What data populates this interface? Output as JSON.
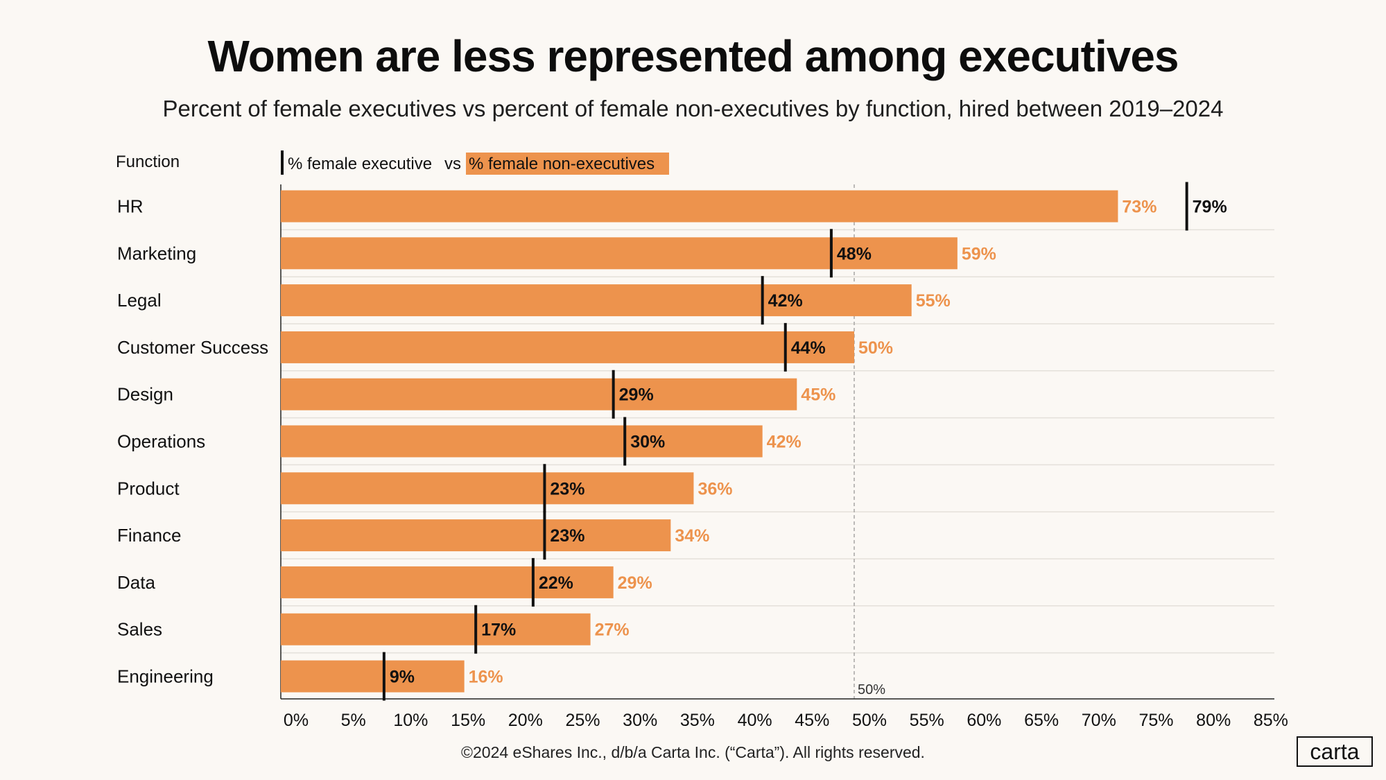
{
  "title": "Women are less represented among executives",
  "subtitle": "Percent of female executives vs percent of female non-executives by function, hired between 2019–2024",
  "footer": "©2024 eShares Inc., d/b/a Carta Inc. (“Carta”). All rights reserved.",
  "logo_text": "carta",
  "colors": {
    "bar": "#ed934d",
    "nonexec_label": "#ed934d",
    "exec_marker": "#111111",
    "background": "#fbf8f4"
  },
  "chart_data": {
    "type": "bar",
    "orientation": "horizontal",
    "category_header": "Function",
    "legend": {
      "exec_label": "% female executive",
      "connector": "vs",
      "nonexec_label": "% female non-executives"
    },
    "categories": [
      "HR",
      "Marketing",
      "Legal",
      "Customer Success",
      "Design",
      "Operations",
      "Product",
      "Finance",
      "Data",
      "Sales",
      "Engineering"
    ],
    "series": [
      {
        "name": "% female non-executives",
        "values": [
          73,
          59,
          55,
          50,
          45,
          42,
          36,
          34,
          29,
          27,
          16
        ]
      },
      {
        "name": "% female executive",
        "values": [
          79,
          48,
          42,
          44,
          29,
          30,
          23,
          23,
          22,
          17,
          9
        ]
      }
    ],
    "data_labels": {
      "nonexec": [
        "73%",
        "59%",
        "55%",
        "50%",
        "45%",
        "42%",
        "36%",
        "34%",
        "29%",
        "27%",
        "16%"
      ],
      "exec": [
        "79%",
        "48%",
        "42%",
        "44%",
        "29%",
        "30%",
        "23%",
        "23%",
        "22%",
        "17%",
        "9%"
      ]
    },
    "xlim": [
      0,
      86.5
    ],
    "xticks": [
      "0%",
      "5%",
      "10%",
      "15%",
      "20%",
      "25%",
      "30%",
      "35%",
      "40%",
      "45%",
      "50%",
      "55%",
      "60%",
      "65%",
      "70%",
      "75%",
      "80%",
      "85%"
    ],
    "xtick_values": [
      0,
      5,
      10,
      15,
      20,
      25,
      30,
      35,
      40,
      45,
      50,
      55,
      60,
      65,
      70,
      75,
      80,
      85
    ],
    "reference_line": {
      "value": 50,
      "label": "50%"
    }
  }
}
